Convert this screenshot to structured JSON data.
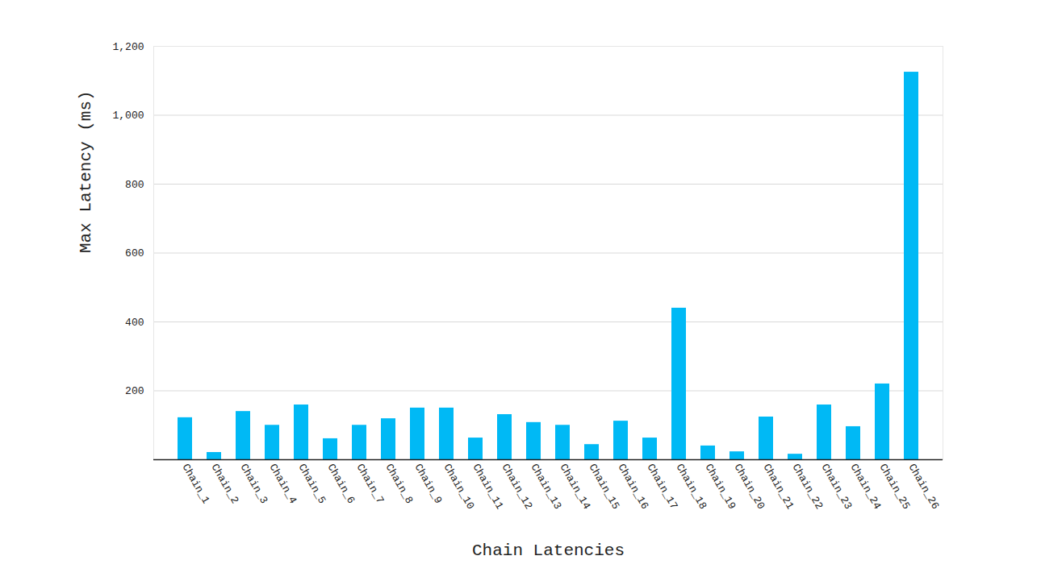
{
  "chart_data": {
    "type": "bar",
    "xlabel": "Chain Latencies",
    "ylabel": "Max Latency (ms)",
    "categories": [
      "Chain_1",
      "Chain_2",
      "Chain_3",
      "Chain_4",
      "Chain_5",
      "Chain_6",
      "Chain_7",
      "Chain_8",
      "Chain_9",
      "Chain_10",
      "Chain_11",
      "Chain_12",
      "Chain_13",
      "Chain_14",
      "Chain_15",
      "Chain_16",
      "Chain_17",
      "Chain_18",
      "Chain_19",
      "Chain_20",
      "Chain_21",
      "Chain_22",
      "Chain_23",
      "Chain_24",
      "Chain_25",
      "Chain_26"
    ],
    "values": [
      122,
      21,
      140,
      100,
      159,
      61,
      100,
      119,
      150,
      150,
      63,
      131,
      108,
      100,
      44,
      112,
      63,
      440,
      40,
      23,
      124,
      16,
      159,
      96,
      220,
      1125
    ],
    "color": "#00b9f5",
    "ylim": [
      0,
      1200
    ],
    "yticks": [
      200,
      400,
      600,
      800,
      1000,
      1200
    ],
    "grid": true
  }
}
